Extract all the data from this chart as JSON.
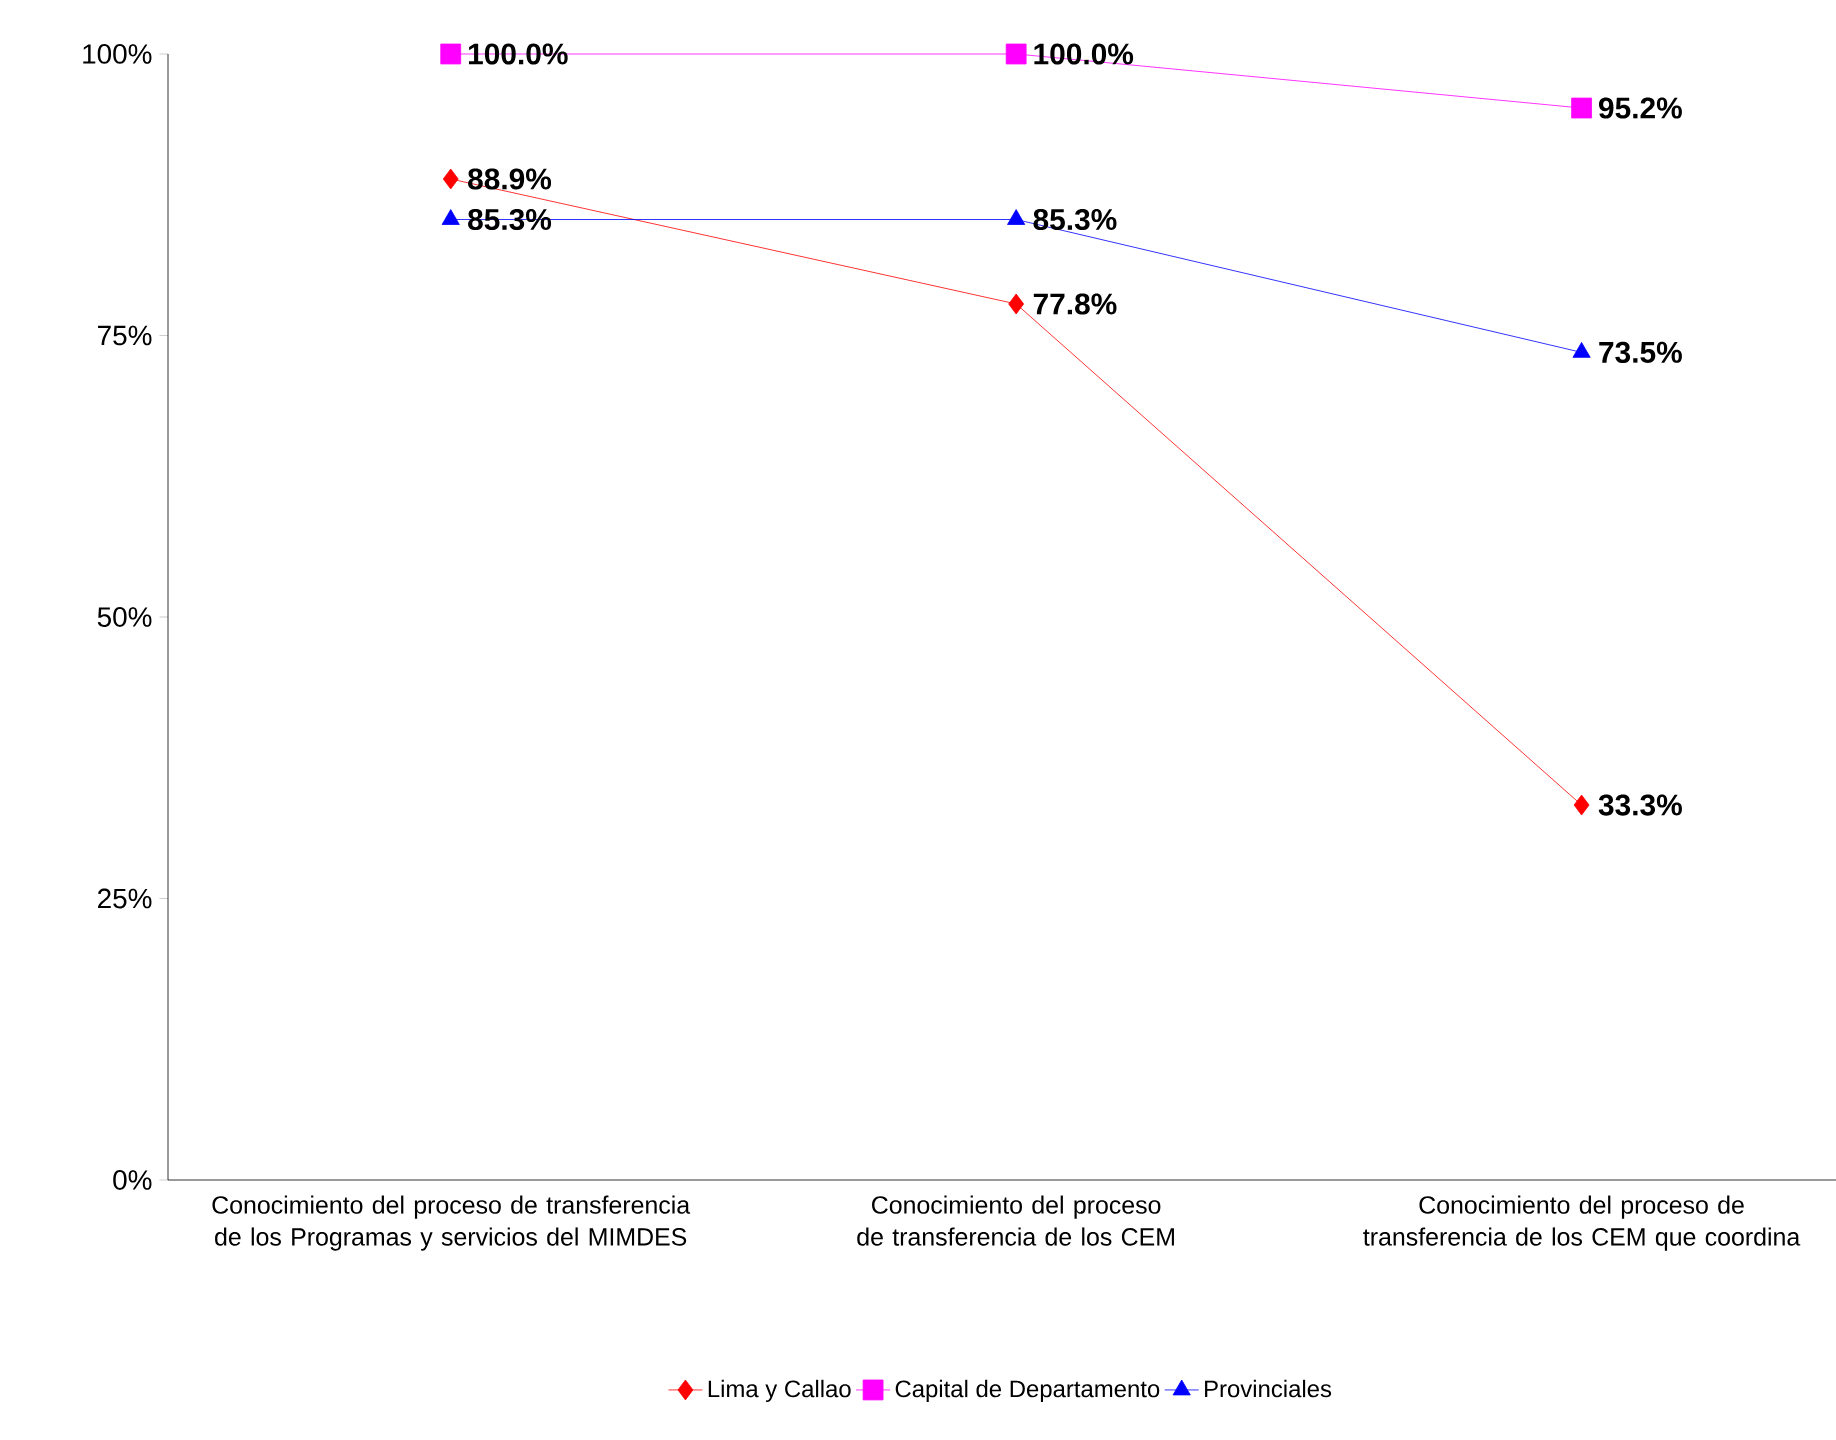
{
  "chart_data": {
    "type": "line",
    "categories": [
      "Conocimiento del proceso de transferencia de los Programas y servicios del MIMDES",
      "Conocimiento del proceso de transferencia de los CEM",
      "Conocimiento del proceso de transferencia de los CEM que coordina"
    ],
    "series": [
      {
        "name": "Lima y Callao",
        "color": "#ff0000",
        "marker": "diamond",
        "values": [
          88.9,
          77.8,
          33.3
        ],
        "value_labels": [
          "88.9%",
          "77.8%",
          "33.3%"
        ]
      },
      {
        "name": "Capital de Departamento",
        "color": "#ff00ff",
        "marker": "square",
        "values": [
          100.0,
          100.0,
          95.2
        ],
        "value_labels": [
          "100.0%",
          "100.0%",
          "95.2%"
        ]
      },
      {
        "name": "Provinciales",
        "color": "#0000ff",
        "marker": "triangle",
        "values": [
          85.3,
          85.3,
          73.5
        ],
        "value_labels": [
          "85.3%",
          "85.3%",
          "73.5%"
        ]
      }
    ],
    "ylim": [
      0,
      100
    ],
    "yticks": [
      {
        "value": 0,
        "label": "0%"
      },
      {
        "value": 25,
        "label": "25%"
      },
      {
        "value": 50,
        "label": "50%"
      },
      {
        "value": 75,
        "label": "75%"
      },
      {
        "value": 100,
        "label": "100%"
      }
    ],
    "grid": false,
    "legend": "bottom",
    "line_style": "solid"
  }
}
